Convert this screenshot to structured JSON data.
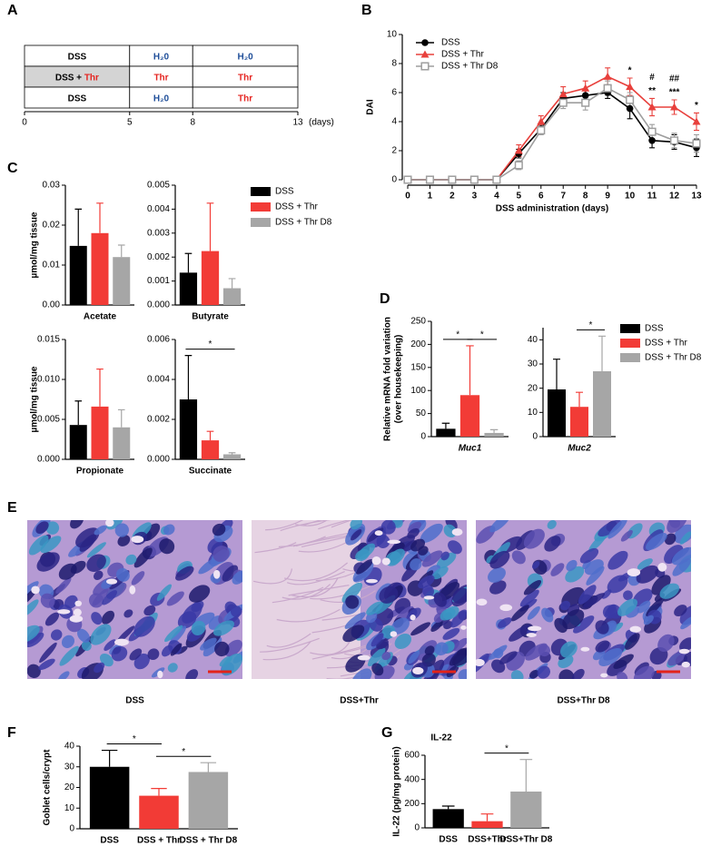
{
  "panel_labels": [
    "A",
    "B",
    "C",
    "D",
    "E",
    "F",
    "G"
  ],
  "timeline": {
    "rows": [
      {
        "label": [
          {
            "text": "DSS",
            "color": "#000000"
          }
        ],
        "shaded": false,
        "cells": [
          {
            "text": "H₂0",
            "color": "#1f4e99"
          },
          {
            "text": "H₂0",
            "color": "#1f4e99"
          }
        ]
      },
      {
        "label": [
          {
            "text": "DSS + ",
            "color": "#000000"
          },
          {
            "text": "Thr",
            "color": "#e52521"
          }
        ],
        "shaded": true,
        "cells": [
          {
            "text": "Thr",
            "color": "#e52521"
          },
          {
            "text": "Thr",
            "color": "#e52521"
          }
        ]
      },
      {
        "label": [
          {
            "text": "DSS",
            "color": "#000000"
          }
        ],
        "shaded": false,
        "cells": [
          {
            "text": "H₂0",
            "color": "#1f4e99"
          },
          {
            "text": "Thr",
            "color": "#e52521"
          }
        ]
      }
    ],
    "xlim": [
      0,
      13
    ],
    "xticks": [
      0,
      5,
      8,
      13
    ],
    "unit": "(days)"
  },
  "chart_data": [
    {
      "type": "line",
      "ylabel": "DAI",
      "xlabel": "DSS administration (days)",
      "x": [
        0,
        1,
        2,
        3,
        4,
        5,
        6,
        7,
        8,
        9,
        10,
        11,
        12,
        13
      ],
      "xlim": [
        0,
        13
      ],
      "xticks": [
        0,
        1,
        2,
        3,
        4,
        5,
        6,
        7,
        8,
        9,
        10,
        11,
        12,
        13
      ],
      "ylim": [
        0,
        10
      ],
      "yticks": [
        0,
        2,
        4,
        6,
        8,
        10
      ],
      "legend": "upper left",
      "series": [
        {
          "name": "DSS",
          "color": "#000000",
          "marker": "circle",
          "values": [
            0,
            0,
            0,
            0,
            0,
            1.8,
            3.5,
            5.6,
            5.8,
            6.0,
            4.9,
            2.7,
            2.6,
            2.2
          ],
          "errors": [
            0,
            0,
            0,
            0,
            0,
            0.3,
            0.3,
            0.4,
            0.4,
            0.4,
            0.7,
            0.5,
            0.5,
            0.6
          ]
        },
        {
          "name": "DSS + Thr",
          "color": "#e8403c",
          "marker": "triangle",
          "values": [
            0,
            0,
            0,
            0,
            0,
            2.0,
            4.0,
            5.9,
            6.3,
            7.1,
            6.4,
            5.0,
            5.0,
            4.0
          ],
          "errors": [
            0,
            0,
            0,
            0,
            0,
            0.4,
            0.4,
            0.5,
            0.5,
            0.6,
            0.6,
            0.6,
            0.5,
            0.6
          ]
        },
        {
          "name": "DSS + Thr D8",
          "color": "#9e9e9e",
          "marker": "square-open",
          "values": [
            0,
            0,
            0,
            0,
            0,
            1.0,
            3.4,
            5.3,
            5.3,
            6.3,
            5.5,
            3.3,
            2.7,
            2.5
          ],
          "errors": [
            0,
            0,
            0,
            0,
            0,
            0.3,
            0.3,
            0.4,
            0.5,
            0.5,
            0.5,
            0.5,
            0.5,
            0.6
          ]
        }
      ],
      "annotations": [
        {
          "x": 10,
          "text": "*",
          "color": "#000000"
        },
        {
          "x": 11,
          "text": "**",
          "color": "#000000"
        },
        {
          "x": 11,
          "text": "#",
          "color": "#9e9e9e"
        },
        {
          "x": 12,
          "text": "***",
          "color": "#000000"
        },
        {
          "x": 12,
          "text": "##",
          "color": "#9e9e9e"
        },
        {
          "x": 13,
          "text": "*",
          "color": "#000000"
        }
      ]
    },
    {
      "type": "bar-panels",
      "legend": "right",
      "series": [
        {
          "name": "DSS",
          "color": "#000000"
        },
        {
          "name": "DSS + Thr",
          "color": "#f23b36"
        },
        {
          "name": "DSS + Thr D8",
          "color": "#a6a6a6"
        }
      ],
      "panels": [
        {
          "ylabel": "µmol/mg tissue",
          "xlabel": "Acetate",
          "values": [
            0.0148,
            0.018,
            0.012
          ],
          "errors": [
            0.0092,
            0.0075,
            0.003
          ],
          "ylim": [
            0,
            0.03
          ],
          "yticks": [
            {
              "value": 0,
              "label": "0.00"
            },
            0.01,
            0.02,
            0.03
          ]
        },
        {
          "xlabel": "Butyrate",
          "values": [
            0.00135,
            0.00225,
            0.0007
          ],
          "errors": [
            0.0008,
            0.002,
            0.0004
          ],
          "ylim": [
            0,
            0.005
          ],
          "yticks": [
            {
              "value": 0,
              "label": "0.000"
            },
            0.001,
            0.002,
            0.003,
            0.004,
            0.005
          ]
        },
        {
          "ylabel": "µmol/mg tissue",
          "xlabel": "Propionate",
          "values": [
            0.0043,
            0.0066,
            0.004
          ],
          "errors": [
            0.003,
            0.0047,
            0.0022
          ],
          "ylim": [
            0,
            0.015
          ],
          "yticks": [
            {
              "value": 0,
              "label": "0.000"
            },
            0.005,
            {
              "value": 0.01,
              "label": "0.010"
            },
            0.015
          ]
        },
        {
          "xlabel": "Succinate",
          "values": [
            0.003,
            0.00095,
            0.00025
          ],
          "errors": [
            0.0022,
            0.00045,
            8e-05
          ],
          "ylim": [
            0,
            0.006
          ],
          "yticks": [
            {
              "value": 0,
              "label": "0.000"
            },
            0.002,
            0.004,
            0.006
          ],
          "significance": [
            {
              "text": "*",
              "from": 0,
              "to": 2
            }
          ]
        }
      ]
    },
    {
      "type": "bar-panels",
      "legend": "right",
      "xlabel_style": "italic",
      "series": [
        {
          "name": "DSS",
          "color": "#000000"
        },
        {
          "name": "DSS + Thr",
          "color": "#f23b36"
        },
        {
          "name": "DSS + Thr D8",
          "color": "#a6a6a6"
        }
      ],
      "panels": [
        {
          "ylabel": [
            "Relative mRNA fold variation",
            "(over housekeeping)"
          ],
          "xlabel": "Muc1",
          "values": [
            17,
            90,
            8
          ],
          "errors": [
            12,
            107,
            7
          ],
          "ylim": [
            0,
            250
          ],
          "yticks": [
            0,
            50,
            100,
            150,
            200,
            250
          ],
          "significance": [
            {
              "text": "*",
              "from": 0,
              "to": 1
            },
            {
              "text": "*",
              "from": 1,
              "to": 2
            }
          ]
        },
        {
          "xlabel": "Muc2",
          "values": [
            19.5,
            12.3,
            27
          ],
          "errors": [
            12.5,
            6,
            14.5
          ],
          "ylim": [
            0,
            45
          ],
          "yticks": [
            0,
            10,
            20,
            30,
            40
          ],
          "significance": [
            {
              "text": "*",
              "from": 1,
              "to": 2
            }
          ]
        }
      ]
    },
    {
      "type": "bar",
      "ylabel": "Goblet cells/crypt",
      "categories": [
        "DSS",
        "DSS + Thr",
        "DSS + Thr D8"
      ],
      "colors": [
        "#000000",
        "#f23b36",
        "#a6a6a6"
      ],
      "values": [
        30,
        16,
        27.5
      ],
      "errors": [
        8,
        3.5,
        4.5
      ],
      "ylim": [
        0,
        40
      ],
      "yticks": [
        0,
        10,
        20,
        30,
        40
      ],
      "significance": [
        {
          "text": "*",
          "from": 0,
          "to": 1
        },
        {
          "text": "*",
          "from": 1,
          "to": 2
        }
      ]
    },
    {
      "type": "bar",
      "title": "IL-22",
      "ylabel": "IL-22 (pg/mg protein)",
      "categories": [
        "DSS",
        "DSS+Thr",
        "DSS+Thr D8"
      ],
      "colors": [
        "#000000",
        "#f23b36",
        "#a6a6a6"
      ],
      "values": [
        155,
        55,
        300
      ],
      "errors": [
        25,
        60,
        265
      ],
      "ylim": [
        0,
        600
      ],
      "yticks": [
        0,
        200,
        400,
        600
      ],
      "significance": [
        {
          "text": "*",
          "from": 1,
          "to": 2
        }
      ]
    }
  ],
  "micrographs": {
    "captions": [
      "DSS",
      "DSS+Thr",
      "DSS+Thr D8"
    ]
  }
}
